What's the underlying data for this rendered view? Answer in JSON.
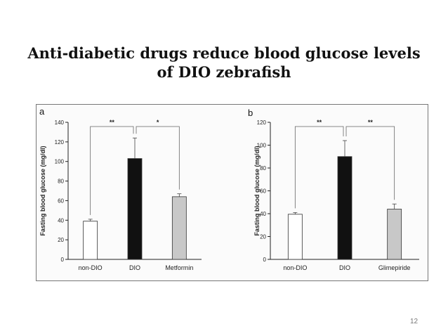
{
  "slide": {
    "title_line1": "Anti-diabetic drugs reduce blood glucose levels",
    "title_line2": "of DIO zebrafish",
    "page_number": "12"
  },
  "chart_data": [
    {
      "type": "bar",
      "panel_label": "a",
      "categories": [
        "non-DIO",
        "DIO",
        "Metformin"
      ],
      "values": [
        39,
        103,
        64
      ],
      "errors": [
        2,
        21,
        3
      ],
      "bar_colors": [
        "#ffffff",
        "#111111",
        "#c8c8c8"
      ],
      "ylabel": "Fasting blood glucose (mg/dl)",
      "ylim": [
        0,
        140
      ],
      "yticks": [
        0,
        20,
        40,
        60,
        80,
        100,
        120,
        140
      ],
      "significance": [
        {
          "from": 0,
          "to": 1,
          "label": "**"
        },
        {
          "from": 1,
          "to": 2,
          "label": "*"
        }
      ]
    },
    {
      "type": "bar",
      "panel_label": "b",
      "categories": [
        "non-DIO",
        "DIO",
        "Glimepiride"
      ],
      "values": [
        39.5,
        90,
        44
      ],
      "errors": [
        1.5,
        14,
        4.5
      ],
      "bar_colors": [
        "#ffffff",
        "#111111",
        "#c8c8c8"
      ],
      "ylabel": "Fasting blood glucose (mg/dl)",
      "ylim": [
        0,
        120
      ],
      "yticks": [
        0,
        20,
        40,
        60,
        80,
        100,
        120
      ],
      "significance": [
        {
          "from": 0,
          "to": 1,
          "label": "**"
        },
        {
          "from": 1,
          "to": 2,
          "label": "**"
        }
      ]
    }
  ]
}
